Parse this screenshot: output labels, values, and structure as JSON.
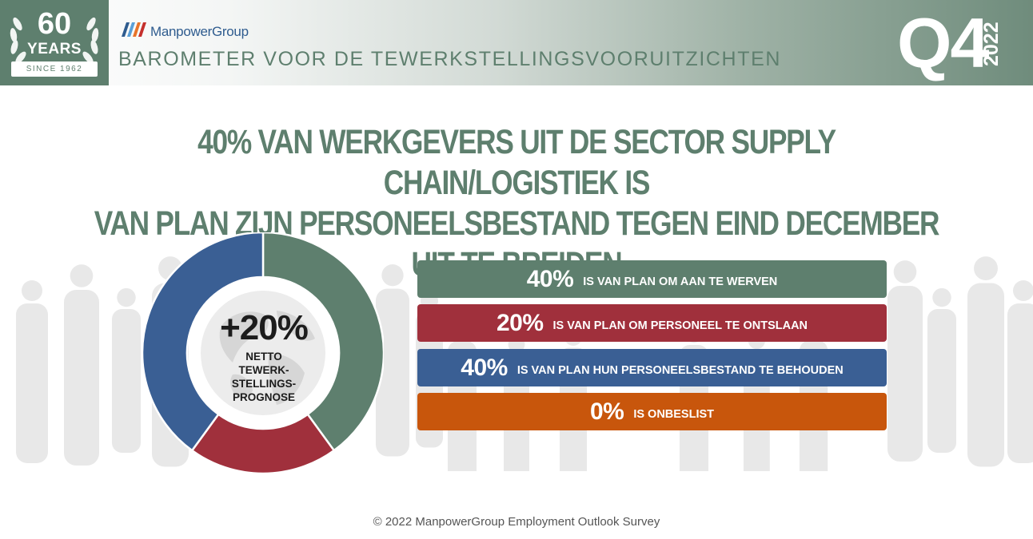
{
  "header": {
    "badge_number": "60",
    "badge_years": "YEARS",
    "badge_since": "SINCE 1962",
    "brand_name": "ManpowerGroup",
    "barometer_title": "BAROMETER VOOR DE TEWERKSTELLINGSVOORUITZICHTEN",
    "quarter": "Q4",
    "year": "2022"
  },
  "title": {
    "line1": "40% VAN WERKGEVERS UIT DE SECTOR SUPPLY CHAIN/LOGISTIEK IS",
    "line2": "VAN PLAN ZIJN PERSONEELSBESTAND TEGEN EIND DECEMBER UIT TE BREIDEN"
  },
  "donut_center": {
    "value": "+20%",
    "label_lines": [
      "NETTO",
      "TEWERK-",
      "STELLINGS-",
      "PROGNOSE"
    ]
  },
  "chart_data": {
    "type": "pie",
    "donut": true,
    "title": "",
    "categories": [
      "IS VAN PLAN OM AAN TE WERVEN",
      "IS VAN PLAN OM PERSONEEL TE ONTSLAAN",
      "IS VAN PLAN HUN PERSONEELSBESTAND TE BEHOUDEN",
      "IS ONBESLIST"
    ],
    "values": [
      40,
      20,
      40,
      0
    ],
    "value_labels": [
      "40%",
      "20%",
      "40%",
      "0%"
    ],
    "colors": [
      "#5e7f6e",
      "#a0303c",
      "#3a5f94",
      "#c8560c"
    ],
    "net_employment_outlook": "+20%"
  },
  "footer": {
    "copyright": "© 2022 ManpowerGroup Employment Outlook Survey"
  },
  "colors": {
    "green": "#5e7f6e",
    "red": "#a0303c",
    "blue": "#3a5f94",
    "orange": "#c8560c"
  }
}
